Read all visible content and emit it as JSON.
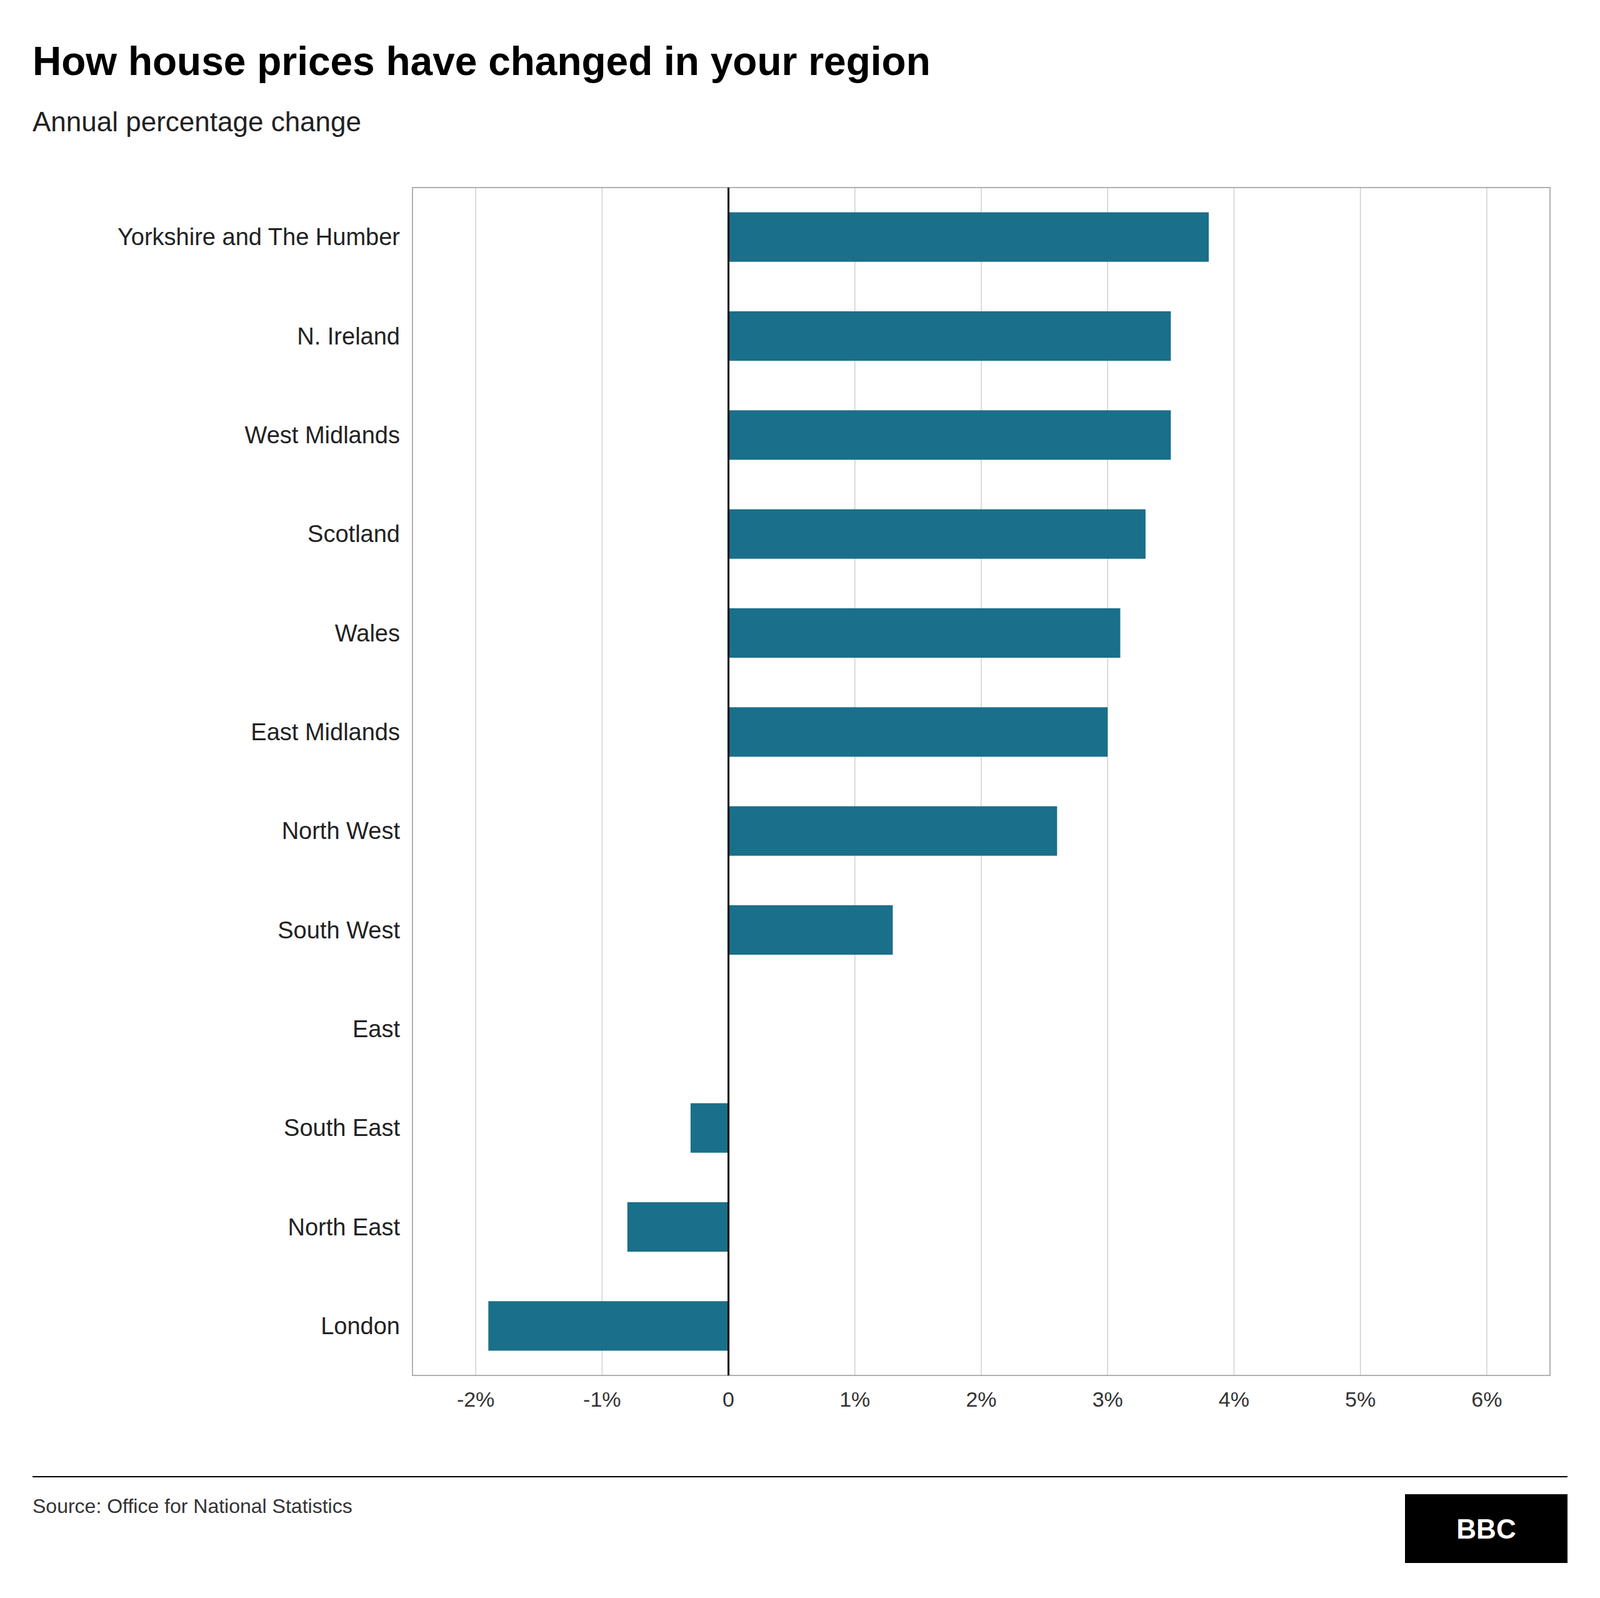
{
  "chart_data": {
    "type": "bar",
    "orientation": "horizontal",
    "title": "How house prices have changed in your region",
    "subtitle": "Annual percentage change",
    "annotations": [
      "Source: Office for National Statistics",
      "BBC"
    ],
    "categories": [
      "Yorkshire and The Humber",
      "N. Ireland",
      "West Midlands",
      "Scotland",
      "Wales",
      "East Midlands",
      "North West",
      "South West",
      "East",
      "South East",
      "North East",
      "London"
    ],
    "values": [
      3.8,
      3.5,
      3.5,
      3.3,
      3.1,
      3.0,
      2.6,
      1.3,
      0.0,
      -0.3,
      -0.8,
      -1.9
    ],
    "color": "#1a6f8a",
    "xlim": [
      -2.5,
      6.5
    ],
    "xticks": [
      {
        "value": -2,
        "label": "-2%"
      },
      {
        "value": -1,
        "label": "-1%"
      },
      0,
      {
        "value": 1,
        "label": "1%"
      },
      {
        "value": 2,
        "label": "2%"
      },
      {
        "value": 3,
        "label": "3%"
      },
      {
        "value": 4,
        "label": "4%"
      },
      {
        "value": 5,
        "label": "5%"
      },
      {
        "value": 6,
        "label": "6%"
      }
    ],
    "grid": true
  }
}
